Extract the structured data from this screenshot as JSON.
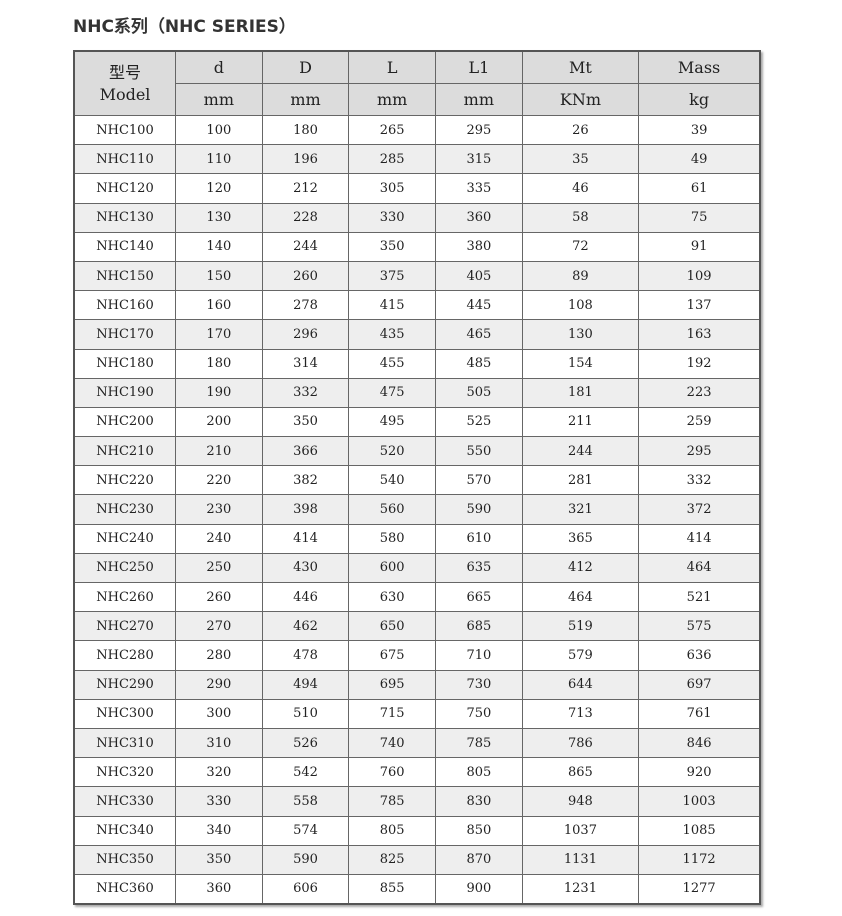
{
  "title": "NHC系列（NHC SERIES）",
  "table": {
    "model_header_cn": "型号",
    "model_header_en": "Model",
    "columns": [
      {
        "name": "d",
        "unit": "mm"
      },
      {
        "name": "D",
        "unit": "mm"
      },
      {
        "name": "L",
        "unit": "mm"
      },
      {
        "name": "L1",
        "unit": "mm"
      },
      {
        "name": "Mt",
        "unit": "KNm"
      },
      {
        "name": "Mass",
        "unit": "kg"
      }
    ],
    "rows": [
      [
        "NHC100",
        "100",
        "180",
        "265",
        "295",
        "26",
        "39"
      ],
      [
        "NHC110",
        "110",
        "196",
        "285",
        "315",
        "35",
        "49"
      ],
      [
        "NHC120",
        "120",
        "212",
        "305",
        "335",
        "46",
        "61"
      ],
      [
        "NHC130",
        "130",
        "228",
        "330",
        "360",
        "58",
        "75"
      ],
      [
        "NHC140",
        "140",
        "244",
        "350",
        "380",
        "72",
        "91"
      ],
      [
        "NHC150",
        "150",
        "260",
        "375",
        "405",
        "89",
        "109"
      ],
      [
        "NHC160",
        "160",
        "278",
        "415",
        "445",
        "108",
        "137"
      ],
      [
        "NHC170",
        "170",
        "296",
        "435",
        "465",
        "130",
        "163"
      ],
      [
        "NHC180",
        "180",
        "314",
        "455",
        "485",
        "154",
        "192"
      ],
      [
        "NHC190",
        "190",
        "332",
        "475",
        "505",
        "181",
        "223"
      ],
      [
        "NHC200",
        "200",
        "350",
        "495",
        "525",
        "211",
        "259"
      ],
      [
        "NHC210",
        "210",
        "366",
        "520",
        "550",
        "244",
        "295"
      ],
      [
        "NHC220",
        "220",
        "382",
        "540",
        "570",
        "281",
        "332"
      ],
      [
        "NHC230",
        "230",
        "398",
        "560",
        "590",
        "321",
        "372"
      ],
      [
        "NHC240",
        "240",
        "414",
        "580",
        "610",
        "365",
        "414"
      ],
      [
        "NHC250",
        "250",
        "430",
        "600",
        "635",
        "412",
        "464"
      ],
      [
        "NHC260",
        "260",
        "446",
        "630",
        "665",
        "464",
        "521"
      ],
      [
        "NHC270",
        "270",
        "462",
        "650",
        "685",
        "519",
        "575"
      ],
      [
        "NHC280",
        "280",
        "478",
        "675",
        "710",
        "579",
        "636"
      ],
      [
        "NHC290",
        "290",
        "494",
        "695",
        "730",
        "644",
        "697"
      ],
      [
        "NHC300",
        "300",
        "510",
        "715",
        "750",
        "713",
        "761"
      ],
      [
        "NHC310",
        "310",
        "526",
        "740",
        "785",
        "786",
        "846"
      ],
      [
        "NHC320",
        "320",
        "542",
        "760",
        "805",
        "865",
        "920"
      ],
      [
        "NHC330",
        "330",
        "558",
        "785",
        "830",
        "948",
        "1003"
      ],
      [
        "NHC340",
        "340",
        "574",
        "805",
        "850",
        "1037",
        "1085"
      ],
      [
        "NHC350",
        "350",
        "590",
        "825",
        "870",
        "1131",
        "1172"
      ],
      [
        "NHC360",
        "360",
        "606",
        "855",
        "900",
        "1231",
        "1277"
      ]
    ]
  }
}
